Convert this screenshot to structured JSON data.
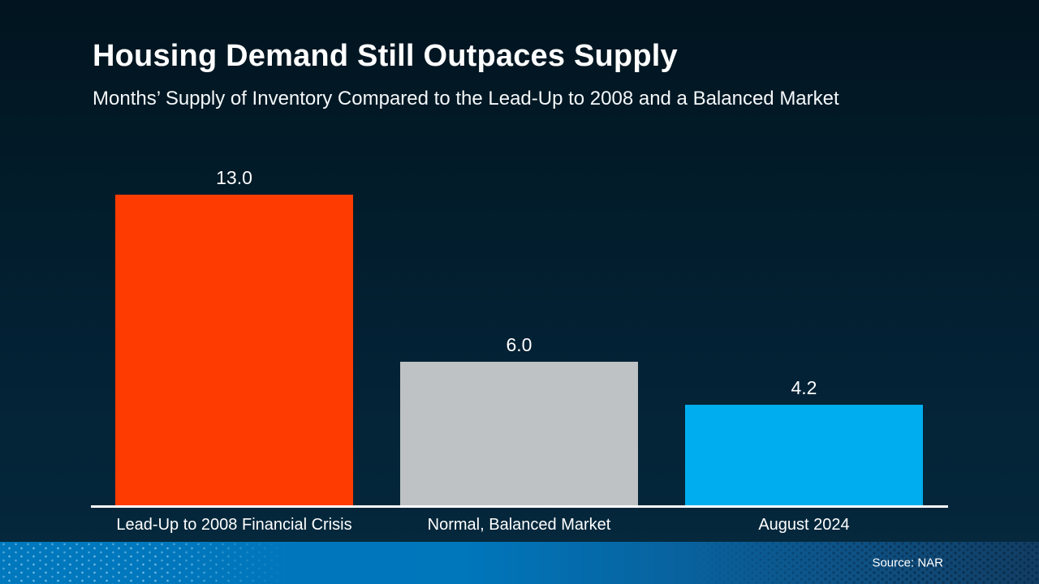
{
  "header": {
    "title": "Housing Demand Still Outpaces Supply",
    "subtitle": "Months’ Supply of Inventory Compared to the Lead-Up to 2008 and a Balanced Market"
  },
  "chart_data": {
    "type": "bar",
    "title": "Housing Demand Still Outpaces Supply",
    "subtitle": "Months’ Supply of Inventory Compared to the Lead-Up to 2008 and a Balanced Market",
    "categories": [
      "Lead-Up to 2008 Financial Crisis",
      "Normal, Balanced Market",
      "August 2024"
    ],
    "values": [
      13.0,
      6.0,
      4.2
    ],
    "value_labels": [
      "13.0",
      "6.0",
      "4.2"
    ],
    "bar_colors": [
      "#fe3b01",
      "#bec2c4",
      "#00adee"
    ],
    "xlabel": "",
    "ylabel": "",
    "ylim": [
      0,
      13.0
    ],
    "grid": false,
    "legend": false,
    "axis_line_color": "#ffffff"
  },
  "footer": {
    "source": "Source: NAR"
  },
  "colors": {
    "background_top": "#01141f",
    "background_bottom": "#052a3f",
    "footer_left": "#0078be",
    "footer_right": "#123d63",
    "text": "#ffffff"
  }
}
